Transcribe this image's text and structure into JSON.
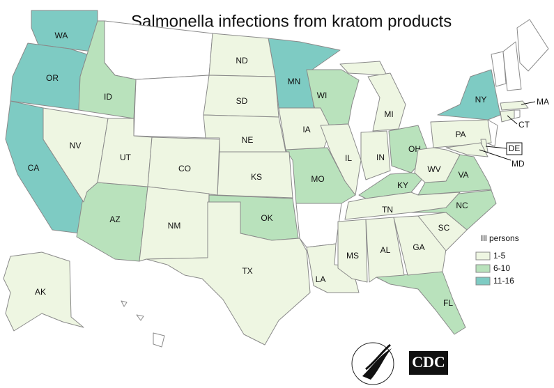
{
  "title": "Salmonella infections from kratom products",
  "legend": {
    "title": "Ill persons",
    "groups": [
      {
        "label": "1-5",
        "color": "#eef6e2",
        "states": [
          "ND",
          "SD",
          "NE",
          "KS",
          "IA",
          "NV",
          "UT",
          "CO",
          "NM",
          "TX",
          "LA",
          "MS",
          "AL",
          "GA",
          "SC",
          "TN",
          "IL",
          "IN",
          "MI",
          "PA",
          "WV",
          "MA",
          "CT",
          "DE",
          "MD",
          "AK"
        ]
      },
      {
        "label": "6-10",
        "color": "#b9e2bc",
        "states": [
          "ID",
          "AZ",
          "OK",
          "MO",
          "WI",
          "OH",
          "KY",
          "VA",
          "NC",
          "FL"
        ]
      },
      {
        "label": "11-16",
        "color": "#7ecbc3",
        "states": [
          "WA",
          "OR",
          "CA",
          "MN",
          "NY"
        ]
      }
    ]
  },
  "logos": {
    "cdc": "CDC"
  }
}
